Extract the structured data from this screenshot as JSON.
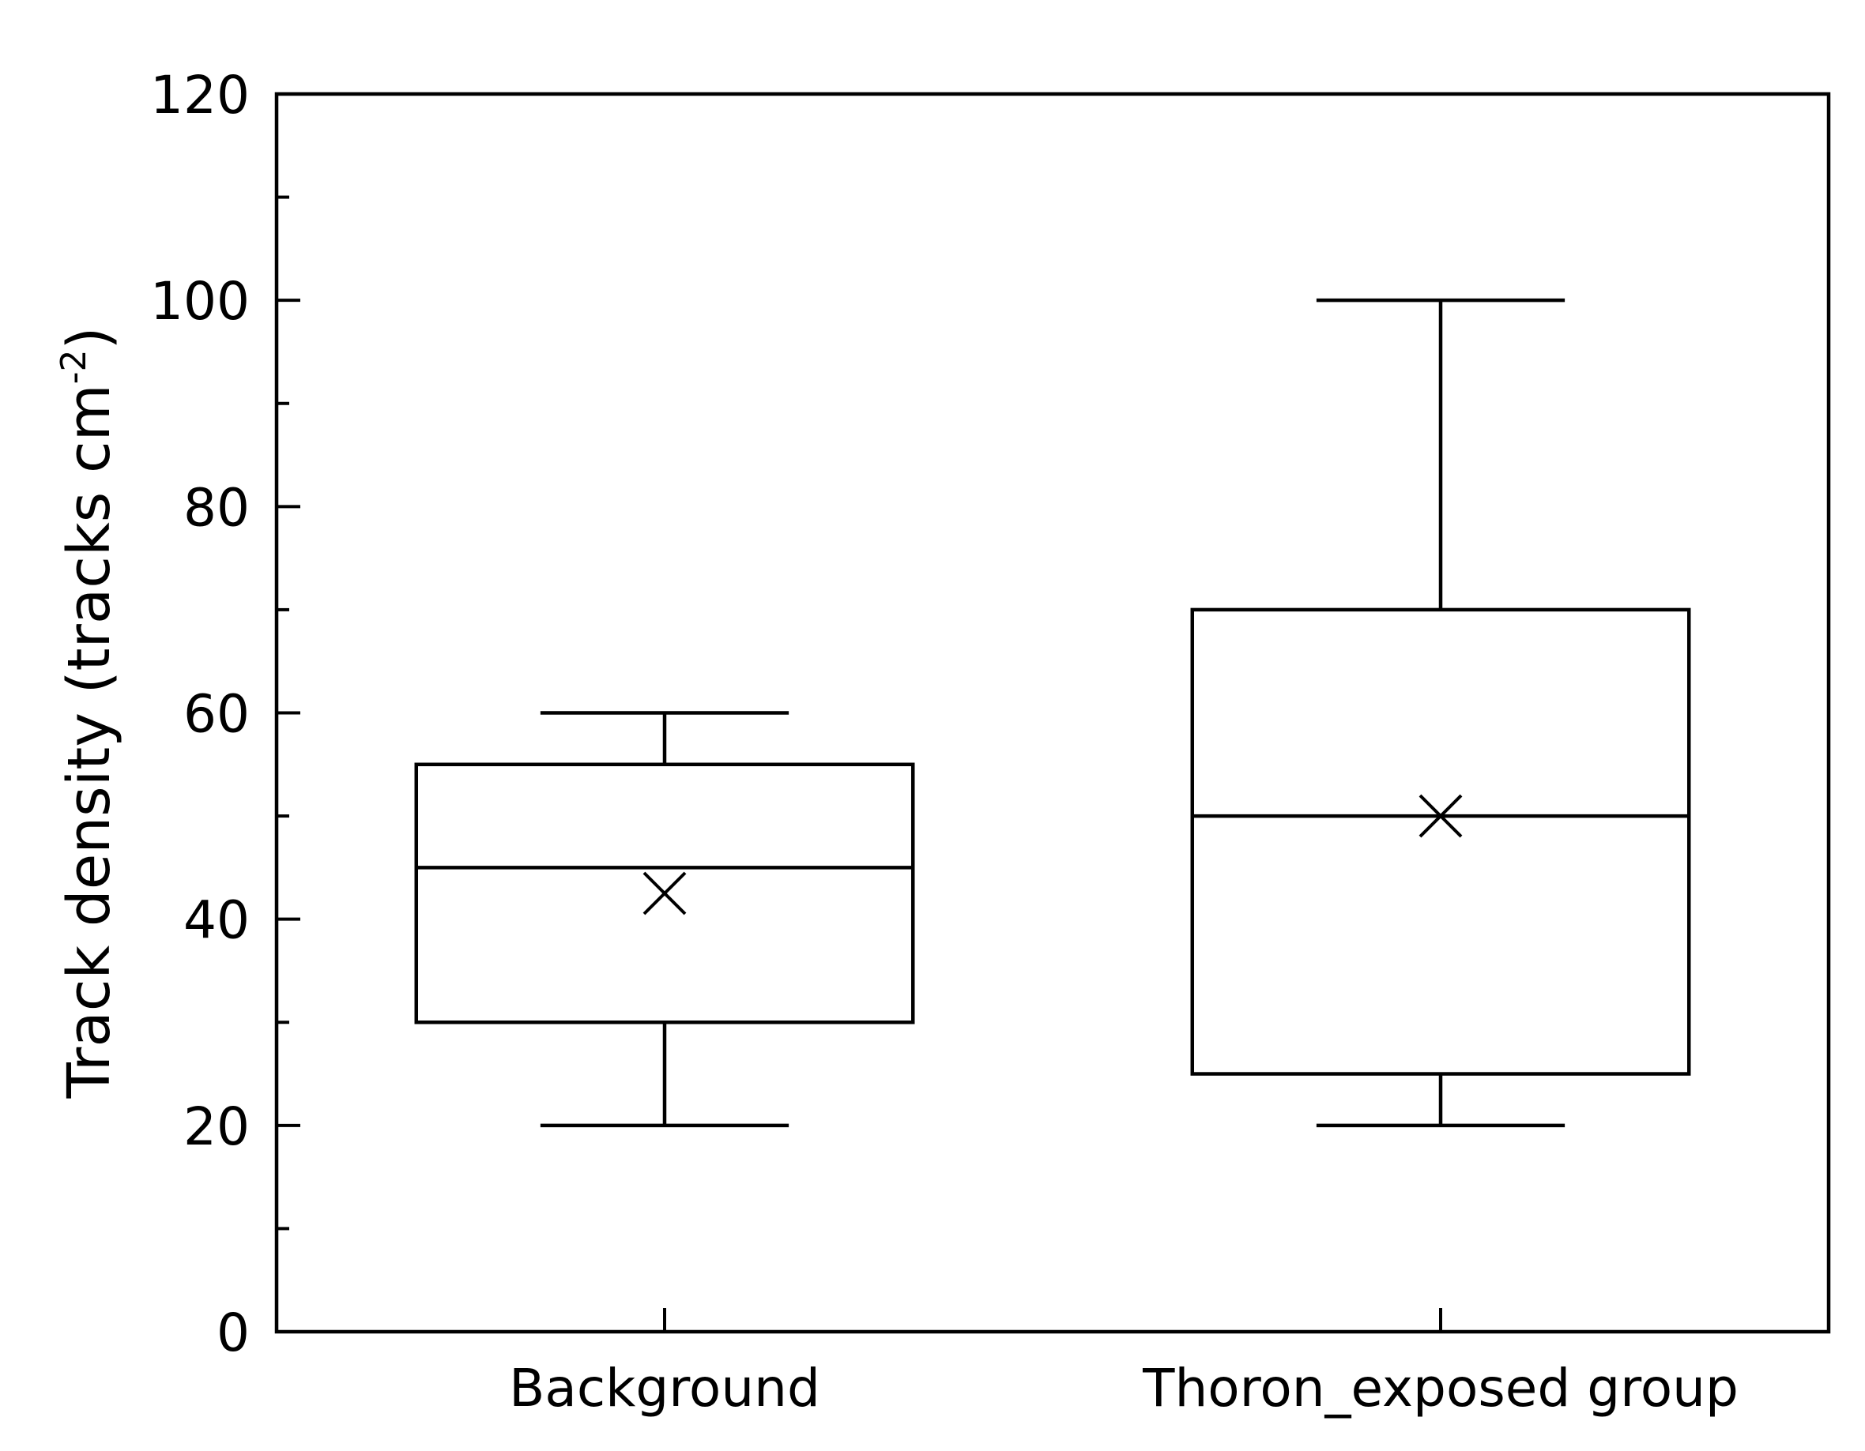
{
  "chart_data": {
    "type": "box",
    "title": "",
    "xlabel": "",
    "ylabel": {
      "main": "Track density (tracks cm",
      "superscript": "-2",
      "close": ")"
    },
    "ylim": [
      0,
      120
    ],
    "yticks_major": [
      0,
      20,
      40,
      60,
      80,
      100,
      120
    ],
    "yticks_major_labels": [
      "0",
      "20",
      "40",
      "60",
      "80",
      "100",
      "120"
    ],
    "yticks_minor": [
      10,
      30,
      50,
      70,
      90,
      110
    ],
    "grid": false,
    "legend": "none",
    "categories": [
      "Background",
      "Thoron_exposed group"
    ],
    "boxes": [
      {
        "category": "Background",
        "whisker_low": 20,
        "q1": 30,
        "median": 45,
        "q3": 55,
        "whisker_high": 60,
        "mean": 42.5
      },
      {
        "category": "Thoron_exposed group",
        "whisker_low": 20,
        "q1": 25,
        "median": 50,
        "q3": 70,
        "whisker_high": 100,
        "mean": 50
      }
    ],
    "colors": {
      "line": "#000000",
      "background": "#ffffff"
    }
  }
}
